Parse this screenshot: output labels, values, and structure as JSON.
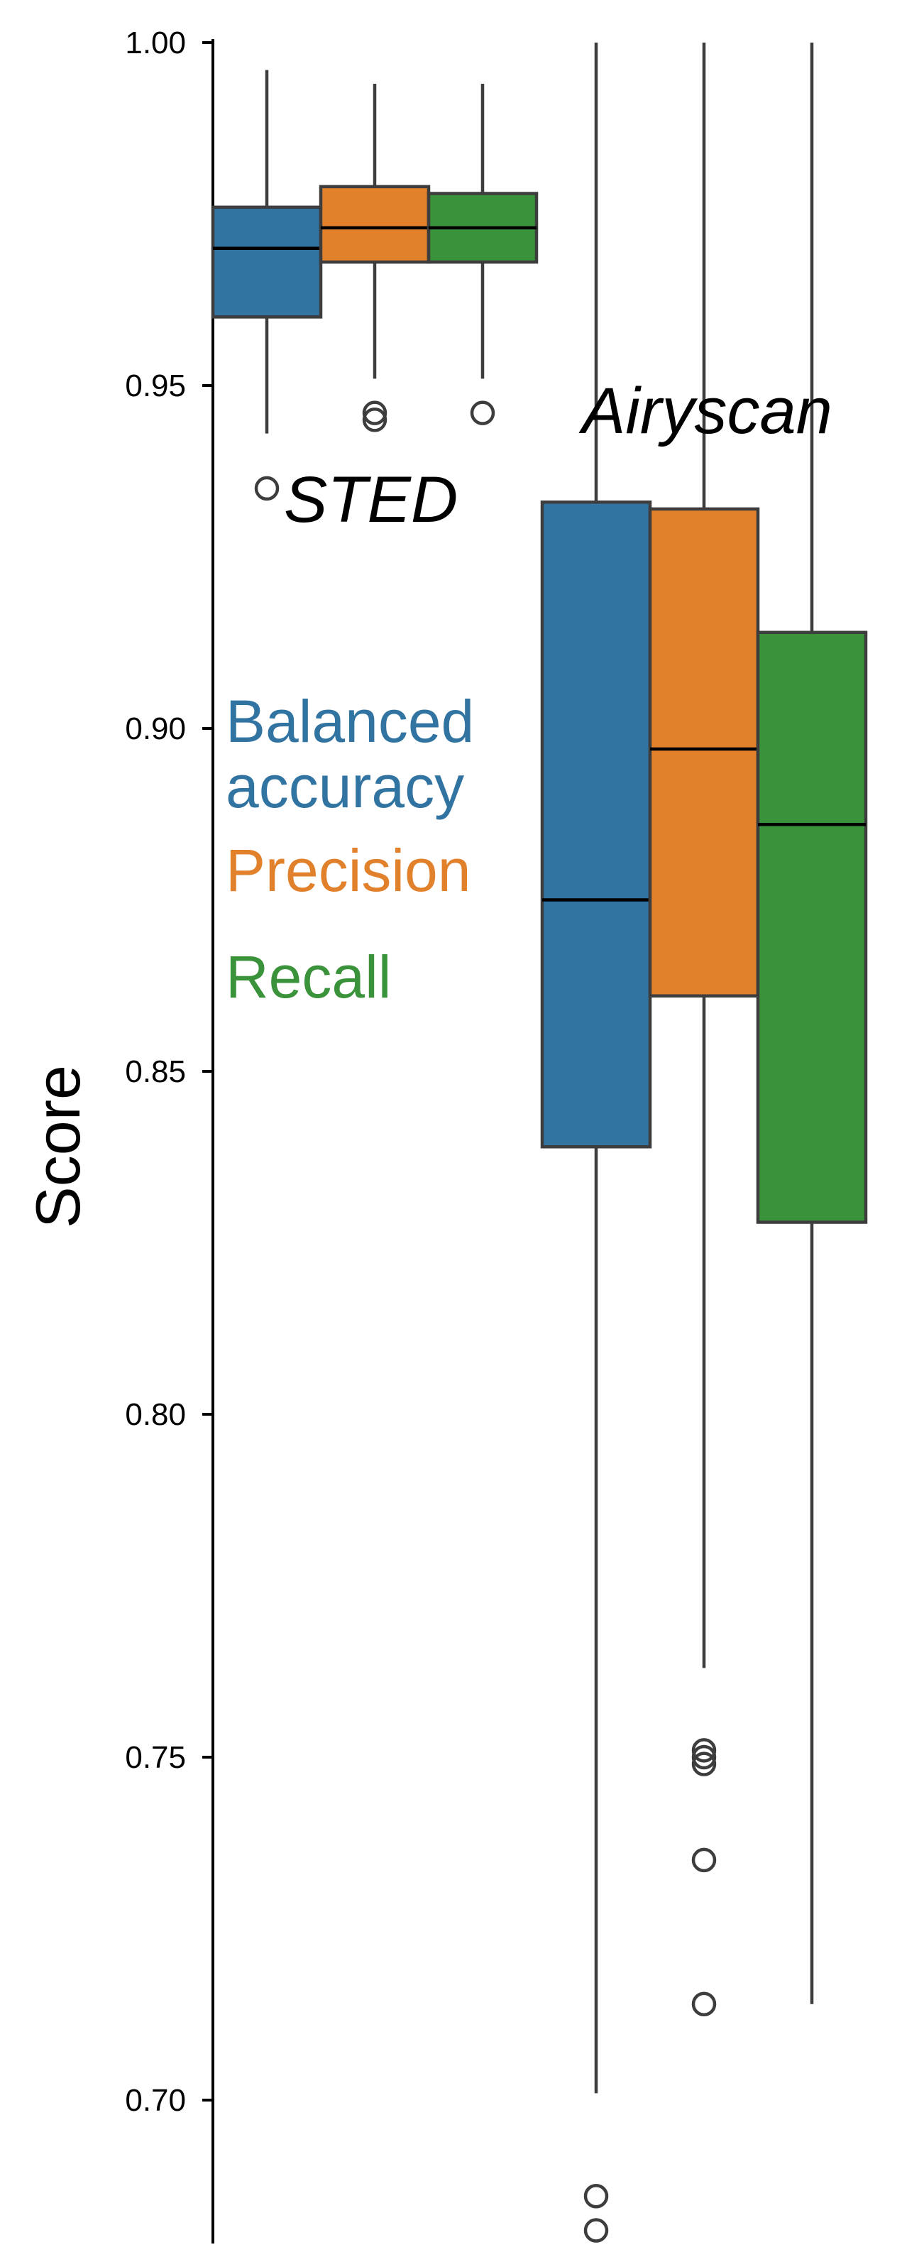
{
  "chart_data": {
    "type": "box",
    "ylabel": "Score",
    "ylim": [
      0.68,
      1.0
    ],
    "yticks": [
      "0.70",
      "0.75",
      "0.80",
      "0.85",
      "0.90",
      "0.95",
      "1.00"
    ],
    "groups": [
      "STED",
      "Airyscan"
    ],
    "series": [
      {
        "name": "Balanced accuracy",
        "color": "#3274a1",
        "boxes": [
          {
            "group": "STED",
            "whisker_low": 0.943,
            "q1": 0.96,
            "median": 0.97,
            "q3": 0.976,
            "whisker_high": 0.996,
            "outliers": [
              0.935
            ]
          },
          {
            "group": "Airyscan",
            "whisker_low": 0.701,
            "q1": 0.839,
            "median": 0.875,
            "q3": 0.933,
            "whisker_high": 1.0,
            "outliers": [
              0.686,
              0.681
            ]
          }
        ]
      },
      {
        "name": "Precision",
        "color": "#e1812c",
        "boxes": [
          {
            "group": "STED",
            "whisker_low": 0.951,
            "q1": 0.968,
            "median": 0.973,
            "q3": 0.979,
            "whisker_high": 0.994,
            "outliers": [
              0.946,
              0.945
            ]
          },
          {
            "group": "Airyscan",
            "whisker_low": 0.763,
            "q1": 0.861,
            "median": 0.897,
            "q3": 0.932,
            "whisker_high": 1.0,
            "outliers": [
              0.751,
              0.75,
              0.749,
              0.735,
              0.714
            ]
          }
        ]
      },
      {
        "name": "Recall",
        "color": "#3a923a",
        "boxes": [
          {
            "group": "STED",
            "whisker_low": 0.951,
            "q1": 0.968,
            "median": 0.973,
            "q3": 0.978,
            "whisker_high": 0.994,
            "outliers": [
              0.946
            ]
          },
          {
            "group": "Airyscan",
            "whisker_low": 0.714,
            "q1": 0.828,
            "median": 0.886,
            "q3": 0.914,
            "whisker_high": 1.0,
            "outliers": []
          }
        ]
      }
    ],
    "legend": {
      "entries": [
        {
          "lines": [
            "Balanced",
            "accuracy"
          ],
          "color": "#3274a1"
        },
        {
          "lines": [
            "Precision"
          ],
          "color": "#e1812c"
        },
        {
          "lines": [
            "Recall"
          ],
          "color": "#3a923a"
        }
      ]
    }
  }
}
